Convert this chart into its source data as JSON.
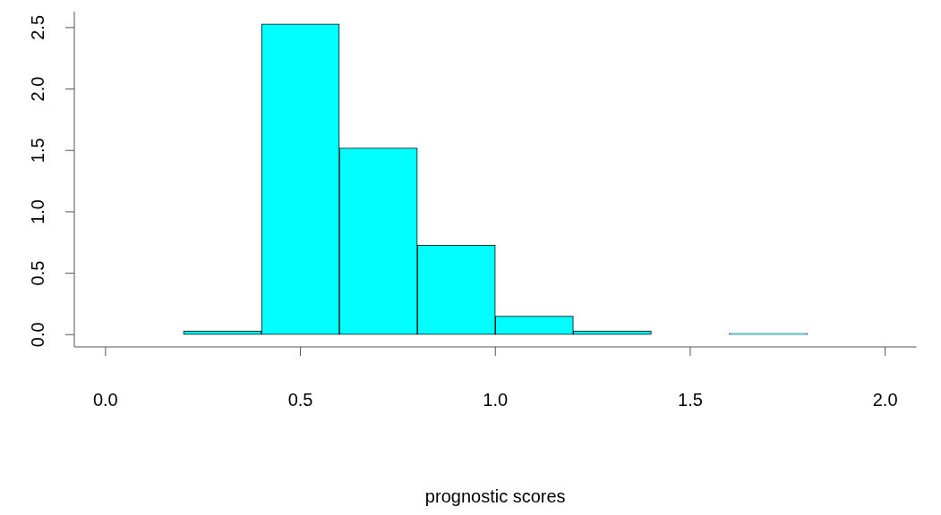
{
  "chart_data": {
    "type": "histogram",
    "xlabel": "prognostic scores",
    "bins": [
      0,
      0.2,
      0.4,
      0.6,
      0.8,
      1.0,
      1.2,
      1.4,
      1.6,
      1.8,
      2.0
    ],
    "values": [
      0,
      0.03,
      2.53,
      1.52,
      0.73,
      0.15,
      0.03,
      0,
      0.01,
      0
    ],
    "color": "#00ffff",
    "xlim": [
      -0.08,
      2.08
    ],
    "xticks": [
      {
        "value": 0,
        "label": "0.0"
      },
      {
        "value": 0.5,
        "label": "0.5"
      },
      {
        "value": 1,
        "label": "1.0"
      },
      {
        "value": 1.5,
        "label": "1.5"
      },
      {
        "value": 2,
        "label": "2.0"
      }
    ],
    "ylim": [
      -0.1,
      2.63
    ],
    "yticks": [
      {
        "value": 0,
        "label": "0.0"
      },
      {
        "value": 0.5,
        "label": "0.5"
      },
      {
        "value": 1,
        "label": "1.0"
      },
      {
        "value": 1.5,
        "label": "1.5"
      },
      {
        "value": 2,
        "label": "2.0"
      },
      {
        "value": 2.5,
        "label": "2.5"
      }
    ],
    "grid": false,
    "legend": false
  }
}
